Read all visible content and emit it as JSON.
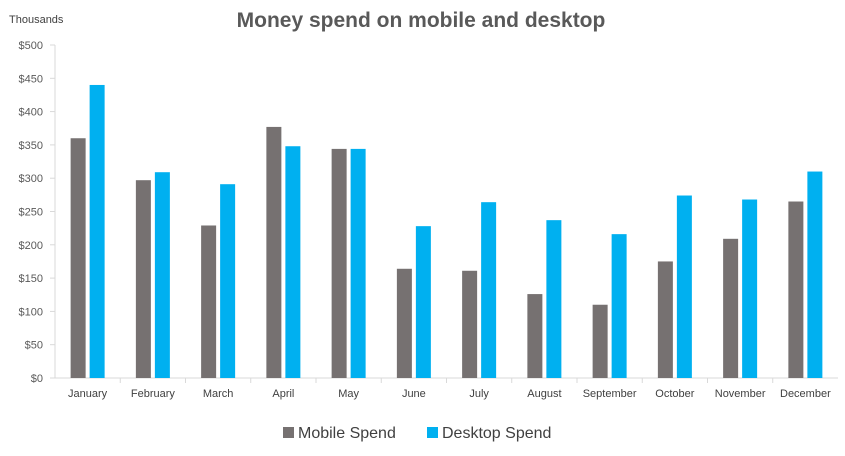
{
  "chart_data": {
    "type": "bar",
    "title": "Money spend on mobile and desktop",
    "unit_label": "Thousands",
    "xlabel": "",
    "ylabel": "",
    "categories": [
      "January",
      "February",
      "March",
      "April",
      "May",
      "June",
      "July",
      "August",
      "September",
      "October",
      "November",
      "December"
    ],
    "series": [
      {
        "name": "Mobile Spend",
        "color": "#767171",
        "values": [
          360,
          297,
          229,
          377,
          344,
          164,
          161,
          126,
          110,
          175,
          209,
          265
        ]
      },
      {
        "name": "Desktop Spend",
        "color": "#00B0F0",
        "values": [
          440,
          309,
          291,
          348,
          344,
          228,
          264,
          237,
          216,
          274,
          268,
          310
        ]
      }
    ],
    "ylim": [
      0,
      500
    ],
    "yticks": [
      0,
      50,
      100,
      150,
      200,
      250,
      300,
      350,
      400,
      450,
      500
    ],
    "ytick_labels": [
      "$0",
      "$50",
      "$100",
      "$150",
      "$200",
      "$250",
      "$300",
      "$350",
      "$400",
      "$450",
      "$500"
    ],
    "grid": false,
    "legend_position": "bottom"
  }
}
